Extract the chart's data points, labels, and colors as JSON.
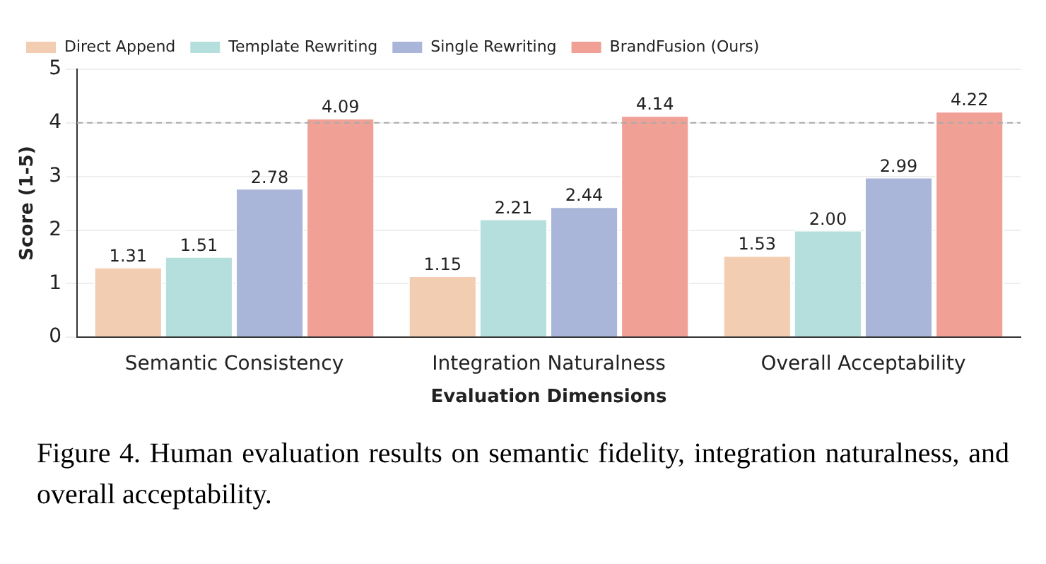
{
  "chart_data": {
    "type": "bar",
    "xlabel": "Evaluation Dimensions",
    "ylabel": "Score (1-5)",
    "categories": [
      "Semantic Consistency",
      "Integration Naturalness",
      "Overall Acceptability"
    ],
    "series": [
      {
        "name": "Direct Append",
        "color": "#f3cdb1",
        "values": [
          1.31,
          1.15,
          1.53
        ]
      },
      {
        "name": "Template Rewriting",
        "color": "#b5dfdc",
        "values": [
          1.51,
          2.21,
          2.0
        ]
      },
      {
        "name": "Single Rewriting",
        "color": "#a9b5d9",
        "values": [
          2.78,
          2.44,
          2.99
        ]
      },
      {
        "name": "BrandFusion (Ours)",
        "color": "#f1a096",
        "values": [
          4.09,
          4.14,
          4.22
        ]
      }
    ],
    "value_labels": [
      [
        "1.31",
        "1.15",
        "1.53"
      ],
      [
        "1.51",
        "2.21",
        "2.00"
      ],
      [
        "2.78",
        "2.44",
        "2.99"
      ],
      [
        "4.09",
        "4.14",
        "4.22"
      ]
    ],
    "ylim": [
      0,
      5
    ],
    "yticks": [
      0,
      1,
      2,
      3,
      4,
      5
    ],
    "grid": "y",
    "legend": "top left",
    "ref_lines": [
      {
        "axis": "y",
        "value": 4,
        "color": "#aaaaaa",
        "line_style": "dashed"
      }
    ],
    "annotations": [
      "Figure 4.  Human evaluation results on semantic fidelity, integration naturalness, and overall acceptability."
    ]
  }
}
